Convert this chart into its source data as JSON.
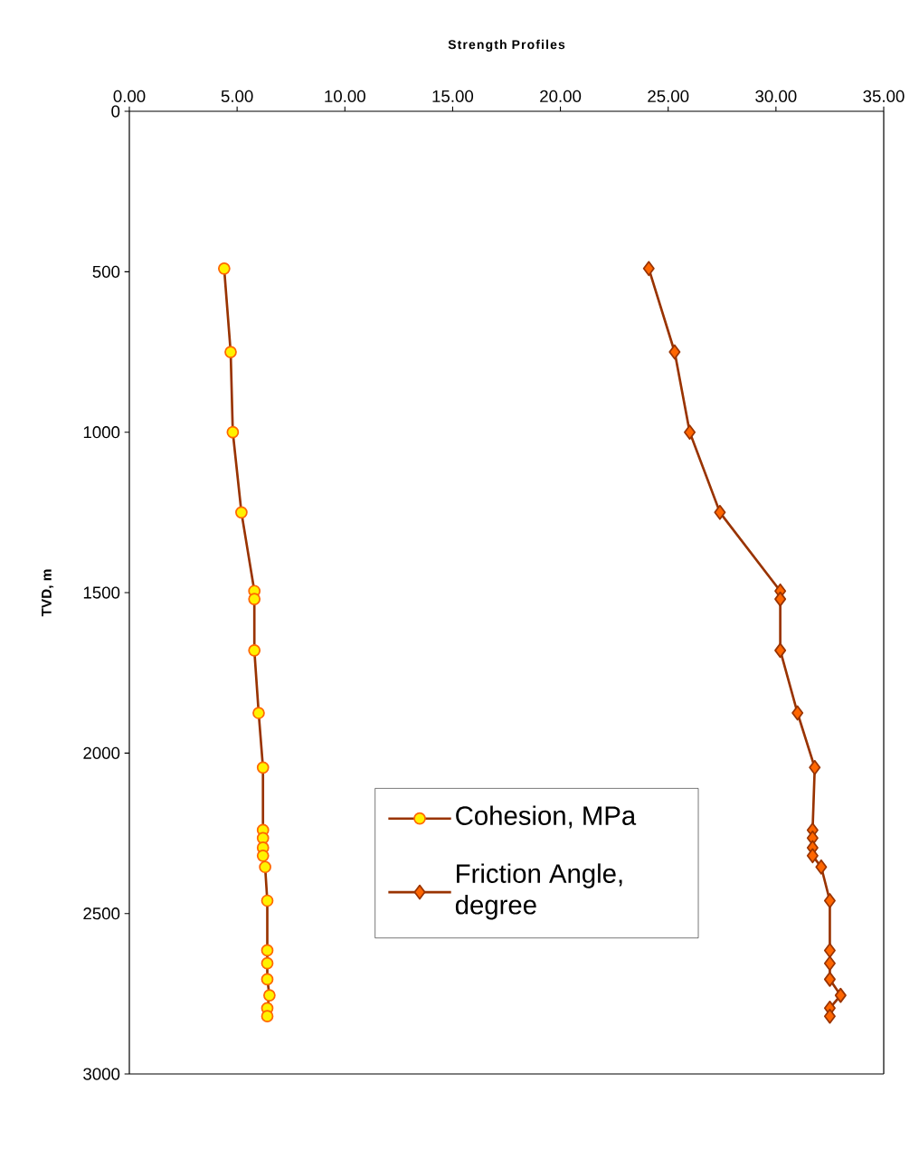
{
  "chart_data": {
    "type": "line",
    "title": "Strength Profiles",
    "ylabel": "TVD, m",
    "orientation": "horizontal",
    "xlim": [
      0,
      35
    ],
    "xticks": [
      {
        "value": 0,
        "label": "0.00"
      },
      {
        "value": 5,
        "label": "5.00"
      },
      {
        "value": 10,
        "label": "10.00"
      },
      {
        "value": 15,
        "label": "15.00"
      },
      {
        "value": 20,
        "label": "20.00"
      },
      {
        "value": 25,
        "label": "25.00"
      },
      {
        "value": 30,
        "label": "30.00"
      },
      {
        "value": 35,
        "label": "35.00"
      }
    ],
    "ylim": [
      3000,
      0
    ],
    "yticks": [
      0,
      500,
      1000,
      1500,
      2000,
      2500,
      3000
    ],
    "grid": false,
    "legend": "bottom",
    "line_style": "solid",
    "series": [
      {
        "name": "Cohesion, MPa",
        "color": "#993300",
        "marker": "circle",
        "x": [
          490,
          750,
          1000,
          1250,
          1495,
          1520,
          1680,
          1875,
          2045,
          2240,
          2265,
          2295,
          2320,
          2355,
          2460,
          2615,
          2655,
          2705,
          2755,
          2795,
          2820
        ],
        "values": [
          4.4,
          4.7,
          4.8,
          5.2,
          5.8,
          5.8,
          5.8,
          6.0,
          6.2,
          6.2,
          6.2,
          6.2,
          6.2,
          6.3,
          6.4,
          6.4,
          6.4,
          6.4,
          6.5,
          6.4,
          6.4
        ]
      },
      {
        "name": "Friction Angle, degree",
        "color": "#993300",
        "marker": "diamond",
        "x": [
          490,
          750,
          1000,
          1250,
          1495,
          1520,
          1680,
          1875,
          2045,
          2240,
          2265,
          2295,
          2320,
          2355,
          2460,
          2615,
          2655,
          2705,
          2755,
          2795,
          2820
        ],
        "values": [
          24.1,
          25.3,
          26.0,
          27.4,
          30.2,
          30.2,
          30.2,
          31.0,
          31.8,
          31.7,
          31.7,
          31.7,
          31.7,
          32.1,
          32.5,
          32.5,
          32.5,
          32.5,
          33.0,
          32.5,
          32.5
        ]
      }
    ]
  }
}
